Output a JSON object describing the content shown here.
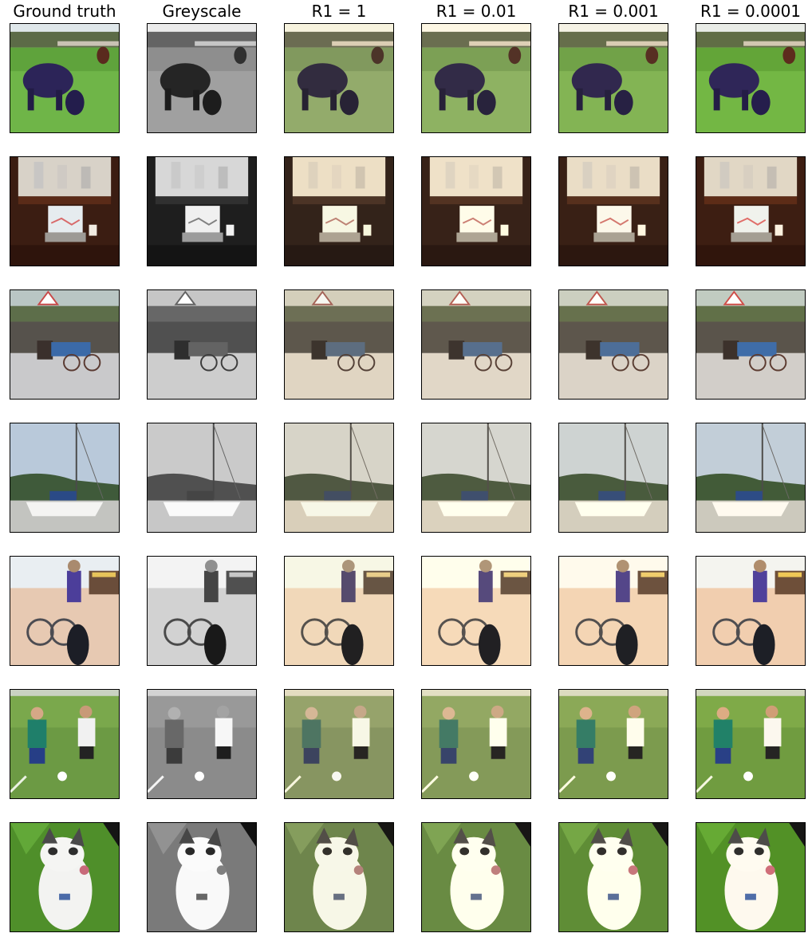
{
  "columns": [
    {
      "title": "Ground truth",
      "variant": "gt"
    },
    {
      "title": "Greyscale",
      "variant": "grey"
    },
    {
      "title": "R1 = 1",
      "variant": "warm"
    },
    {
      "title": "R1 = 0.01",
      "variant": "warm2"
    },
    {
      "title": "R1 = 0.001",
      "variant": "warm3"
    },
    {
      "title": "R1 = 0.0001",
      "variant": "warm4"
    }
  ],
  "rows": [
    {
      "subject": "cow-grazing"
    },
    {
      "subject": "laptop-desk"
    },
    {
      "subject": "horse-carriage"
    },
    {
      "subject": "sailboat"
    },
    {
      "subject": "bicycle-street"
    },
    {
      "subject": "kids-soccer"
    },
    {
      "subject": "cat-grass"
    }
  ]
}
